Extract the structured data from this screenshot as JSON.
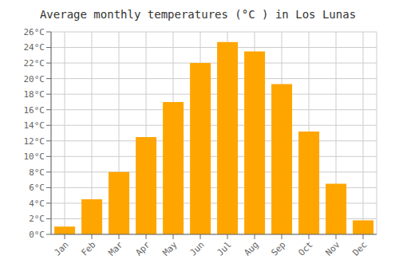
{
  "chart_data": {
    "type": "bar",
    "title": "Average monthly temperatures (°C ) in Los Lunas",
    "categories": [
      "Jan",
      "Feb",
      "Mar",
      "Apr",
      "May",
      "Jun",
      "Jul",
      "Aug",
      "Sep",
      "Oct",
      "Nov",
      "Dec"
    ],
    "values": [
      1.0,
      4.5,
      8.0,
      12.5,
      17.0,
      22.0,
      24.7,
      23.5,
      19.3,
      13.2,
      6.5,
      1.8
    ],
    "color": "#FFA500",
    "ylim": [
      0,
      26
    ],
    "yticks": [
      {
        "value": 0,
        "label": "0°C"
      },
      {
        "value": 2,
        "label": "2°C"
      },
      {
        "value": 4,
        "label": "4°C"
      },
      {
        "value": 6,
        "label": "6°C"
      },
      {
        "value": 8,
        "label": "8°C"
      },
      {
        "value": 10,
        "label": "10°C"
      },
      {
        "value": 12,
        "label": "12°C"
      },
      {
        "value": 14,
        "label": "14°C"
      },
      {
        "value": 16,
        "label": "16°C"
      },
      {
        "value": 18,
        "label": "18°C"
      },
      {
        "value": 20,
        "label": "20°C"
      },
      {
        "value": 22,
        "label": "22°C"
      },
      {
        "value": 24,
        "label": "24°C"
      },
      {
        "value": 26,
        "label": "26°C"
      }
    ],
    "grid": true
  }
}
